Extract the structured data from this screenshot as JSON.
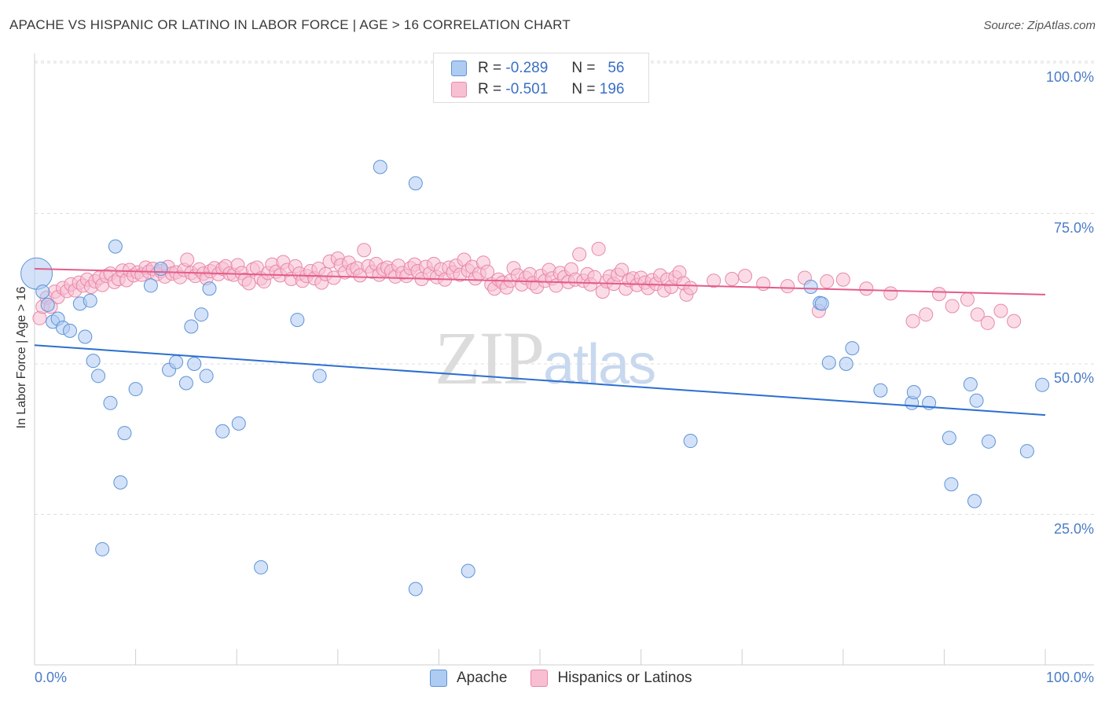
{
  "header": {
    "title": "APACHE VS HISPANIC OR LATINO IN LABOR FORCE | AGE > 16 CORRELATION CHART",
    "source": "Source: ZipAtlas.com"
  },
  "legend": {
    "apache": {
      "r_label": "R =",
      "r_value": "-0.289",
      "n_label": "N =",
      "n_value": "56"
    },
    "hispanic": {
      "r_label": "R =",
      "r_value": "-0.501",
      "n_label": "N =",
      "n_value": "196"
    }
  },
  "watermark": {
    "zip": "ZIP",
    "atlas": "atlas"
  },
  "colors": {
    "apache_fill": "#aecbf2",
    "apache_stroke": "#5e93d8",
    "apache_line": "#2c6fcf",
    "hispanic_fill": "#f8bfd2",
    "hispanic_stroke": "#e888aa",
    "hispanic_line": "#e45c8a",
    "tick_text": "#4a7cc7"
  },
  "chart_data": {
    "type": "scatter",
    "title": "APACHE VS HISPANIC OR LATINO IN LABOR FORCE | AGE > 16 CORRELATION CHART",
    "xlabel": "",
    "ylabel": "In Labor Force | Age > 16",
    "xlim": [
      0,
      100
    ],
    "ylim": [
      0,
      103
    ],
    "x_tick_labels": [
      "0.0%",
      "100.0%"
    ],
    "y_ticks": [
      {
        "value": 100,
        "label": "100.0%"
      },
      {
        "value": 75,
        "label": "75.0%"
      },
      {
        "value": 50,
        "label": "50.0%"
      },
      {
        "value": 25,
        "label": "25.0%"
      }
    ],
    "grid": true,
    "legend_position": "top-center",
    "series": [
      {
        "name": "Apache",
        "r": -0.289,
        "n": 56,
        "trend": {
          "x": [
            0,
            100
          ],
          "y": [
            53.1,
            41.5
          ]
        },
        "points": [
          [
            0.2,
            65.0,
            "big"
          ],
          [
            0.8,
            62.0
          ],
          [
            1.3,
            59.8
          ],
          [
            1.8,
            57.0
          ],
          [
            2.3,
            57.5
          ],
          [
            2.8,
            56.0
          ],
          [
            3.5,
            55.5
          ],
          [
            4.5,
            60.0
          ],
          [
            5.0,
            54.5
          ],
          [
            5.5,
            60.5
          ],
          [
            5.8,
            50.5
          ],
          [
            6.3,
            48.0
          ],
          [
            7.5,
            43.5
          ],
          [
            8.0,
            69.5
          ],
          [
            8.5,
            30.3
          ],
          [
            8.9,
            38.5
          ],
          [
            10.0,
            45.8
          ],
          [
            6.7,
            19.2
          ],
          [
            11.5,
            63.0
          ],
          [
            12.5,
            65.8
          ],
          [
            13.3,
            49.0
          ],
          [
            14.0,
            50.3
          ],
          [
            15.0,
            46.8
          ],
          [
            15.5,
            56.2
          ],
          [
            15.8,
            50.0
          ],
          [
            16.5,
            58.2
          ],
          [
            17.0,
            48.0
          ],
          [
            17.3,
            62.5
          ],
          [
            18.6,
            38.8
          ],
          [
            20.2,
            40.1
          ],
          [
            22.4,
            16.2
          ],
          [
            26.0,
            57.3
          ],
          [
            28.2,
            48.0
          ],
          [
            34.2,
            82.7
          ],
          [
            37.7,
            80.0
          ],
          [
            37.7,
            12.6
          ],
          [
            42.9,
            15.6
          ],
          [
            64.9,
            37.2
          ],
          [
            76.8,
            62.8
          ],
          [
            77.7,
            60.1
          ],
          [
            78.6,
            50.2
          ],
          [
            80.3,
            50.0
          ],
          [
            80.9,
            52.6
          ],
          [
            83.7,
            45.6
          ],
          [
            86.8,
            43.5
          ],
          [
            87.0,
            45.3
          ],
          [
            88.5,
            43.5
          ],
          [
            90.5,
            37.7
          ],
          [
            90.7,
            30.0
          ],
          [
            92.6,
            46.6
          ],
          [
            93.0,
            27.2
          ],
          [
            93.2,
            43.9
          ],
          [
            94.4,
            37.1
          ],
          [
            98.2,
            35.5
          ],
          [
            99.7,
            46.5
          ],
          [
            77.9,
            60.0
          ]
        ]
      },
      {
        "name": "Hispanics or Latinos",
        "r": -0.501,
        "n": 196,
        "trend": {
          "x": [
            0,
            100
          ],
          "y": [
            65.8,
            61.5
          ]
        },
        "points": [
          [
            0.5,
            57.6
          ],
          [
            0.8,
            59.5
          ],
          [
            1.2,
            61.0
          ],
          [
            1.6,
            59.5
          ],
          [
            2.0,
            62.0
          ],
          [
            2.3,
            61.1
          ],
          [
            2.8,
            62.6
          ],
          [
            3.2,
            62.1
          ],
          [
            3.6,
            63.2
          ],
          [
            4.0,
            62.2
          ],
          [
            4.4,
            63.5
          ],
          [
            4.8,
            63.0
          ],
          [
            5.2,
            64.0
          ],
          [
            5.6,
            62.8
          ],
          [
            6.0,
            63.7
          ],
          [
            6.4,
            64.3
          ],
          [
            6.7,
            63.1
          ],
          [
            7.1,
            64.6
          ],
          [
            7.5,
            65.0
          ],
          [
            7.9,
            63.6
          ],
          [
            8.3,
            64.1
          ],
          [
            8.7,
            65.5
          ],
          [
            9.1,
            63.9
          ],
          [
            9.4,
            65.6
          ],
          [
            9.8,
            64.7
          ],
          [
            10.2,
            65.2
          ],
          [
            10.6,
            64.8
          ],
          [
            11.0,
            66.0
          ],
          [
            11.3,
            65.3
          ],
          [
            11.7,
            65.8
          ],
          [
            12.1,
            64.9
          ],
          [
            12.5,
            65.4
          ],
          [
            12.9,
            64.5
          ],
          [
            13.2,
            66.1
          ],
          [
            13.6,
            65.0
          ],
          [
            14.0,
            65.2
          ],
          [
            14.4,
            64.4
          ],
          [
            14.8,
            65.6
          ],
          [
            15.1,
            67.3
          ],
          [
            15.5,
            65.1
          ],
          [
            15.9,
            64.6
          ],
          [
            16.3,
            65.7
          ],
          [
            16.7,
            65.0
          ],
          [
            17.0,
            64.2
          ],
          [
            17.4,
            65.4
          ],
          [
            17.8,
            65.9
          ],
          [
            18.2,
            64.9
          ],
          [
            18.6,
            65.8
          ],
          [
            18.9,
            66.2
          ],
          [
            19.3,
            65.0
          ],
          [
            19.7,
            64.8
          ],
          [
            20.1,
            66.4
          ],
          [
            20.5,
            65.1
          ],
          [
            20.8,
            64.0
          ],
          [
            21.2,
            63.4
          ],
          [
            21.6,
            65.7
          ],
          [
            22.0,
            66.0
          ],
          [
            22.4,
            64.2
          ],
          [
            22.7,
            63.7
          ],
          [
            23.1,
            65.1
          ],
          [
            23.5,
            66.5
          ],
          [
            23.9,
            65.3
          ],
          [
            24.3,
            64.7
          ],
          [
            24.6,
            66.9
          ],
          [
            25.0,
            65.6
          ],
          [
            25.4,
            64.1
          ],
          [
            25.8,
            66.2
          ],
          [
            26.2,
            65.0
          ],
          [
            26.5,
            63.8
          ],
          [
            26.9,
            64.6
          ],
          [
            27.3,
            65.4
          ],
          [
            27.7,
            64.2
          ],
          [
            28.1,
            65.8
          ],
          [
            28.4,
            63.5
          ],
          [
            28.8,
            64.9
          ],
          [
            29.2,
            67.0
          ],
          [
            29.6,
            64.3
          ],
          [
            30.0,
            67.5
          ],
          [
            30.3,
            66.4
          ],
          [
            30.7,
            65.2
          ],
          [
            31.1,
            66.8
          ],
          [
            31.5,
            65.6
          ],
          [
            31.9,
            65.9
          ],
          [
            32.2,
            64.7
          ],
          [
            32.6,
            68.9
          ],
          [
            33.0,
            66.2
          ],
          [
            33.4,
            65.3
          ],
          [
            33.8,
            66.6
          ],
          [
            34.1,
            64.8
          ],
          [
            34.5,
            65.7
          ],
          [
            34.9,
            66.0
          ],
          [
            35.3,
            65.4
          ],
          [
            35.7,
            64.5
          ],
          [
            36.0,
            66.3
          ],
          [
            36.4,
            65.1
          ],
          [
            36.8,
            64.6
          ],
          [
            37.2,
            65.9
          ],
          [
            37.6,
            66.5
          ],
          [
            37.9,
            65.4
          ],
          [
            38.3,
            64.1
          ],
          [
            38.7,
            66.1
          ],
          [
            39.1,
            65.0
          ],
          [
            39.5,
            66.6
          ],
          [
            39.8,
            64.4
          ],
          [
            40.2,
            65.7
          ],
          [
            40.6,
            64.0
          ],
          [
            41.0,
            66.0
          ],
          [
            41.4,
            65.2
          ],
          [
            41.7,
            66.3
          ],
          [
            42.1,
            64.8
          ],
          [
            42.5,
            67.3
          ],
          [
            42.9,
            65.5
          ],
          [
            43.3,
            66.1
          ],
          [
            43.6,
            64.2
          ],
          [
            44.0,
            65.0
          ],
          [
            44.4,
            66.8
          ],
          [
            44.8,
            65.3
          ],
          [
            45.2,
            63.2
          ],
          [
            45.5,
            62.5
          ],
          [
            45.9,
            64.0
          ],
          [
            46.3,
            63.5
          ],
          [
            46.7,
            62.7
          ],
          [
            47.1,
            63.8
          ],
          [
            47.4,
            65.9
          ],
          [
            47.8,
            64.7
          ],
          [
            48.2,
            63.2
          ],
          [
            48.6,
            64.3
          ],
          [
            49.0,
            64.9
          ],
          [
            49.3,
            63.4
          ],
          [
            49.7,
            62.8
          ],
          [
            50.1,
            64.6
          ],
          [
            50.5,
            63.8
          ],
          [
            50.9,
            65.6
          ],
          [
            51.2,
            64.2
          ],
          [
            51.6,
            63.0
          ],
          [
            52.0,
            65.1
          ],
          [
            52.4,
            64.4
          ],
          [
            52.8,
            63.6
          ],
          [
            53.1,
            65.7
          ],
          [
            53.5,
            64.0
          ],
          [
            53.9,
            68.2
          ],
          [
            54.3,
            63.8
          ],
          [
            54.7,
            64.9
          ],
          [
            55.0,
            63.2
          ],
          [
            55.4,
            64.4
          ],
          [
            55.8,
            69.1
          ],
          [
            56.2,
            62.0
          ],
          [
            56.6,
            63.7
          ],
          [
            56.9,
            64.5
          ],
          [
            57.3,
            63.3
          ],
          [
            57.7,
            64.8
          ],
          [
            58.1,
            65.6
          ],
          [
            58.5,
            62.5
          ],
          [
            58.8,
            63.9
          ],
          [
            59.2,
            64.2
          ],
          [
            59.6,
            63.1
          ],
          [
            60.0,
            64.3
          ],
          [
            60.4,
            63.5
          ],
          [
            60.7,
            62.6
          ],
          [
            61.1,
            63.9
          ],
          [
            61.5,
            63.3
          ],
          [
            61.9,
            64.7
          ],
          [
            62.3,
            62.2
          ],
          [
            62.6,
            64.0
          ],
          [
            63.0,
            62.8
          ],
          [
            63.4,
            64.4
          ],
          [
            63.8,
            65.2
          ],
          [
            64.2,
            63.4
          ],
          [
            64.5,
            61.5
          ],
          [
            64.9,
            62.6
          ],
          [
            67.2,
            63.8
          ],
          [
            69.0,
            64.1
          ],
          [
            70.3,
            64.6
          ],
          [
            72.1,
            63.3
          ],
          [
            74.5,
            62.9
          ],
          [
            76.2,
            64.3
          ],
          [
            77.6,
            58.8
          ],
          [
            78.4,
            63.7
          ],
          [
            80.0,
            64.0
          ],
          [
            82.3,
            62.5
          ],
          [
            84.7,
            61.7
          ],
          [
            86.9,
            57.1
          ],
          [
            88.2,
            58.2
          ],
          [
            89.5,
            61.6
          ],
          [
            90.8,
            59.6
          ],
          [
            92.3,
            60.7
          ],
          [
            93.3,
            58.2
          ],
          [
            94.3,
            56.8
          ],
          [
            95.6,
            58.8
          ],
          [
            96.9,
            57.1
          ]
        ]
      }
    ]
  }
}
